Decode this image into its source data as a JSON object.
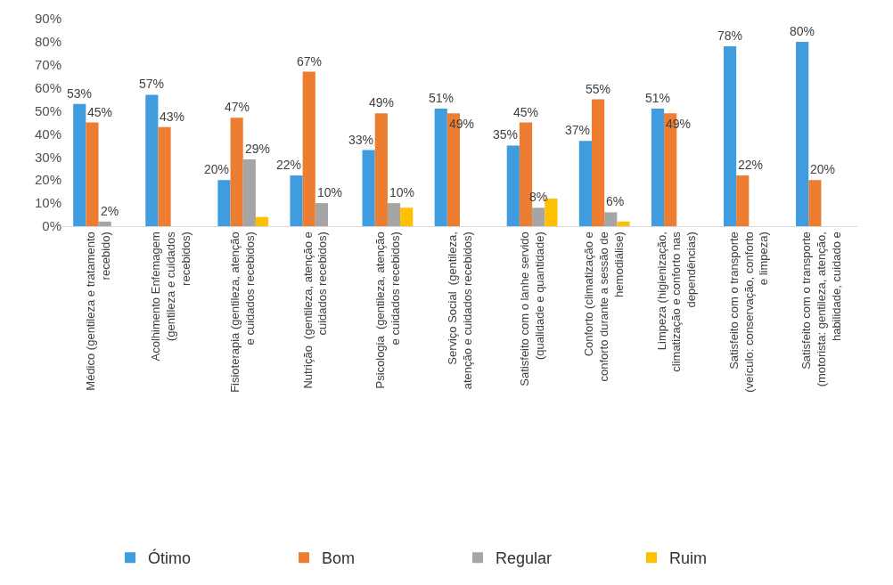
{
  "chart_data": {
    "type": "bar",
    "categories": [
      "Médico (gentileza e tratamento\nrecebido)",
      "Acolhimento Enfemagem\n(gentileza e cuidados\nrecebidos)",
      "Fisioterapia (gentileza, atenção\ne cuidados recebidos)",
      "Nutrição  (gentileza, atenção e\ncuidados recebidos)",
      "Psicologia  (gentileza, atenção\ne cuidados recebidos)",
      "Serviço Social  (gentileza,\natenção e cuidados recebidos)",
      "Satisfeito com o lanhe servido\n(qualidade e quantidade)",
      "Conforto (climatização e\nconforto durante a sessão de\nhemodiálise)",
      "Limpeza (higienização,\nclimatização e conforto nas\ndependências)",
      "Satisfeito com o transporte\n(veículo: conservação, conforto\ne limpeza)",
      "Satisfeito com o transporte\n(motorista: gentileza, atenção,\nhabilidade, cuidado e"
    ],
    "series": [
      {
        "name": "Ótimo",
        "color": "#3f9ddf",
        "values": [
          53,
          57,
          20,
          22,
          33,
          51,
          35,
          37,
          51,
          78,
          80
        ],
        "value_labels": [
          "53%",
          "57%",
          "20%",
          "22%",
          "33%",
          "51%",
          "35%",
          "37%",
          "51%",
          "78%",
          "80%"
        ]
      },
      {
        "name": "Bom",
        "color": "#ed7d31",
        "values": [
          45,
          43,
          47,
          67,
          49,
          49,
          45,
          55,
          49,
          22,
          20
        ],
        "value_labels": [
          "45%",
          "43%",
          "47%",
          "67%",
          "49%",
          "49%",
          "45%",
          "55%",
          "49%",
          "22%",
          "20%"
        ]
      },
      {
        "name": "Regular",
        "color": "#a5a5a5",
        "values": [
          2,
          null,
          29,
          10,
          10,
          null,
          8,
          6,
          null,
          null,
          null
        ],
        "value_labels": [
          "2%",
          null,
          "29%",
          "10%",
          "10%",
          null,
          "8%",
          "6%",
          null,
          null,
          null
        ]
      },
      {
        "name": "Ruim",
        "color": "#ffc000",
        "values": [
          null,
          null,
          4,
          null,
          8,
          null,
          12,
          2,
          null,
          null,
          null
        ],
        "value_labels": [
          null,
          null,
          null,
          null,
          null,
          null,
          null,
          null,
          null,
          null,
          null
        ]
      }
    ],
    "ylim": [
      0,
      90
    ],
    "yticks": [
      {
        "value": 0,
        "label": "0%"
      },
      {
        "value": 10,
        "label": "10%"
      },
      {
        "value": 20,
        "label": "20%"
      },
      {
        "value": 30,
        "label": "30%"
      },
      {
        "value": 40,
        "label": "40%"
      },
      {
        "value": 50,
        "label": "50%"
      },
      {
        "value": 60,
        "label": "60%"
      },
      {
        "value": 70,
        "label": "70%"
      },
      {
        "value": 80,
        "label": "80%"
      },
      {
        "value": 90,
        "label": "90%"
      }
    ],
    "legend": "bottom"
  }
}
